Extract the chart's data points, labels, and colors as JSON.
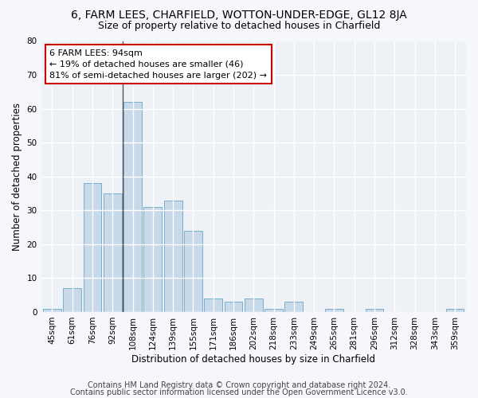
{
  "title": "6, FARM LEES, CHARFIELD, WOTTON-UNDER-EDGE, GL12 8JA",
  "subtitle": "Size of property relative to detached houses in Charfield",
  "xlabel": "Distribution of detached houses by size in Charfield",
  "ylabel": "Number of detached properties",
  "categories": [
    "45sqm",
    "61sqm",
    "76sqm",
    "92sqm",
    "108sqm",
    "124sqm",
    "139sqm",
    "155sqm",
    "171sqm",
    "186sqm",
    "202sqm",
    "218sqm",
    "233sqm",
    "249sqm",
    "265sqm",
    "281sqm",
    "296sqm",
    "312sqm",
    "328sqm",
    "343sqm",
    "359sqm"
  ],
  "values": [
    1,
    7,
    38,
    35,
    62,
    31,
    33,
    24,
    4,
    3,
    4,
    1,
    3,
    0,
    1,
    0,
    1,
    0,
    0,
    0,
    1
  ],
  "bar_color": "#c8d9ea",
  "bar_edge_color": "#7aaec8",
  "vline_x_index": 3.5,
  "vline_color": "#555555",
  "annotation_text": "6 FARM LEES: 94sqm\n← 19% of detached houses are smaller (46)\n81% of semi-detached houses are larger (202) →",
  "annotation_box_color": "#ffffff",
  "annotation_box_edge": "#cc0000",
  "ylim": [
    0,
    80
  ],
  "yticks": [
    0,
    10,
    20,
    30,
    40,
    50,
    60,
    70,
    80
  ],
  "footnote1": "Contains HM Land Registry data © Crown copyright and database right 2024.",
  "footnote2": "Contains public sector information licensed under the Open Government Licence v3.0.",
  "plot_bg_color": "#eef2f7",
  "fig_bg_color": "#f5f7fa",
  "grid_color": "#ffffff",
  "title_fontsize": 10,
  "subtitle_fontsize": 9,
  "axis_label_fontsize": 8.5,
  "tick_fontsize": 7.5,
  "footnote_fontsize": 7,
  "ann_fontsize": 8
}
